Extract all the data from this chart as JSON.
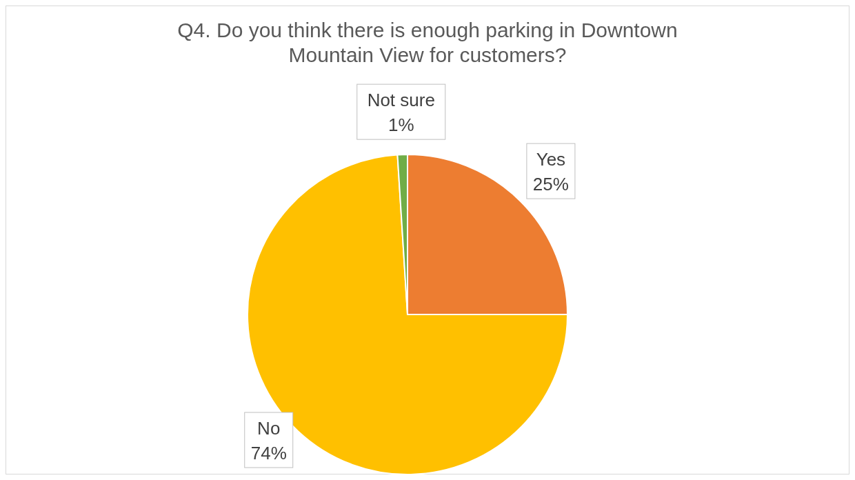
{
  "chart_data": {
    "type": "pie",
    "title": "Q4. Do you think there is enough parking in Downtown Mountain View for customers?",
    "categories": [
      "Yes",
      "No",
      "Not sure"
    ],
    "values": [
      25,
      74,
      1
    ],
    "value_labels": [
      "25%",
      "74%",
      "1%"
    ],
    "colors": [
      "#ed7d31",
      "#ffc000",
      "#70ad47"
    ]
  }
}
